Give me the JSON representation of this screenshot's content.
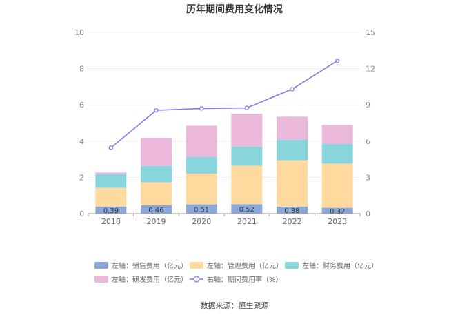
{
  "chart_data": {
    "type": "bar",
    "title": "历年期间费用变化情况",
    "categories": [
      "2018",
      "2019",
      "2020",
      "2021",
      "2022",
      "2023"
    ],
    "stacked": true,
    "y_left": {
      "ylim": [
        0,
        10
      ],
      "ticks": [
        0,
        2,
        4,
        6,
        8,
        10
      ]
    },
    "y_right": {
      "ylim": [
        0,
        15
      ],
      "ticks": [
        0,
        3,
        6,
        9,
        12,
        15
      ]
    },
    "series": [
      {
        "name": "左轴：销售费用（亿元）",
        "axis": "left",
        "kind": "bar",
        "color": "#8aa8d8",
        "values": [
          0.39,
          0.46,
          0.51,
          0.52,
          0.38,
          0.32
        ],
        "data_labels": [
          "0.39",
          "0.46",
          "0.51",
          "0.52",
          "0.38",
          "0.32"
        ]
      },
      {
        "name": "左轴：管理费用（亿元）",
        "axis": "left",
        "kind": "bar",
        "color": "#ffd99e",
        "values": [
          1.03,
          1.27,
          1.7,
          2.12,
          2.56,
          2.44
        ]
      },
      {
        "name": "左轴：财务费用（亿元）",
        "axis": "left",
        "kind": "bar",
        "color": "#88d6dc",
        "values": [
          0.75,
          0.9,
          0.92,
          1.06,
          1.13,
          1.08
        ]
      },
      {
        "name": "左轴：研发费用（亿元）",
        "axis": "left",
        "kind": "bar",
        "color": "#e9b8da",
        "values": [
          0.1,
          1.55,
          1.72,
          1.81,
          1.28,
          1.05
        ]
      },
      {
        "name": "右轴：期间费用率（%）",
        "axis": "right",
        "kind": "line",
        "color": "#7b7de8",
        "values": [
          5.45,
          8.55,
          8.7,
          8.75,
          10.3,
          12.65
        ]
      }
    ],
    "legend_position": "bottom",
    "grid": true
  },
  "footer": {
    "source": "数据来源：恒生聚源"
  }
}
